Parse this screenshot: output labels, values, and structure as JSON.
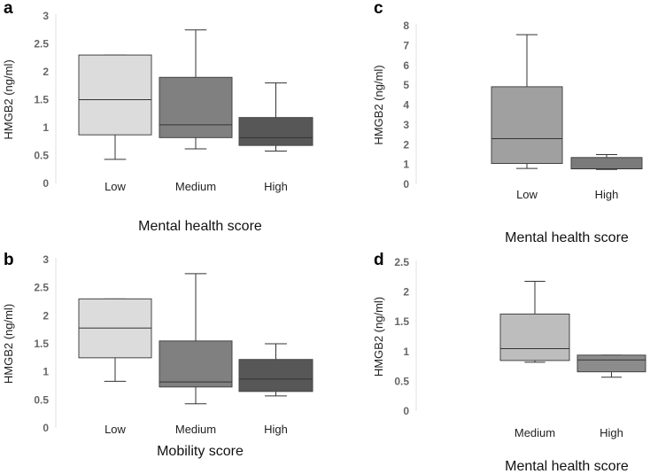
{
  "chart_data": [
    {
      "panel": "a",
      "type": "box",
      "ylabel": "HMGB2 (ng/ml)",
      "xlabel": "Mental health score",
      "ylim": [
        0,
        3
      ],
      "yticks": [
        "0",
        "0.5",
        "1",
        "1.5",
        "2",
        "2.5",
        "3"
      ],
      "categories": [
        "Low",
        "Medium",
        "High"
      ],
      "series": [
        {
          "name": "Low",
          "min": 0.43,
          "q1": 0.87,
          "median": 1.5,
          "q3": 2.3,
          "max": 2.3,
          "color": "#dcdcdc"
        },
        {
          "name": "Medium",
          "min": 0.62,
          "q1": 0.82,
          "median": 1.05,
          "q3": 1.9,
          "max": 2.75,
          "color": "#808080"
        },
        {
          "name": "High",
          "min": 0.58,
          "q1": 0.68,
          "median": 0.82,
          "q3": 1.18,
          "max": 1.8,
          "color": "#575757"
        }
      ]
    },
    {
      "panel": "b",
      "type": "box",
      "ylabel": "HMGB2 (ng/ml)",
      "xlabel": "Mobility score",
      "ylim": [
        0,
        3
      ],
      "yticks": [
        "0",
        "0.5",
        "1",
        "1.5",
        "2",
        "2.5",
        "3"
      ],
      "categories": [
        "Low",
        "Medium",
        "High"
      ],
      "series": [
        {
          "name": "Low",
          "min": 0.83,
          "q1": 1.25,
          "median": 1.78,
          "q3": 2.3,
          "max": 2.3,
          "color": "#dcdcdc"
        },
        {
          "name": "Medium",
          "min": 0.43,
          "q1": 0.73,
          "median": 0.82,
          "q3": 1.55,
          "max": 2.75,
          "color": "#808080"
        },
        {
          "name": "High",
          "min": 0.57,
          "q1": 0.65,
          "median": 0.87,
          "q3": 1.22,
          "max": 1.5,
          "color": "#575757"
        }
      ]
    },
    {
      "panel": "c",
      "type": "box",
      "ylabel": "HMGB2  (ng/ml)",
      "xlabel": "Mental health score",
      "ylim": [
        0,
        8
      ],
      "yticks": [
        "0",
        "1",
        "2",
        "3",
        "4",
        "5",
        "6",
        "7",
        "8"
      ],
      "categories": [
        "Low",
        "High"
      ],
      "series": [
        {
          "name": "Low",
          "min": 0.8,
          "q1": 1.05,
          "median": 2.3,
          "q3": 4.92,
          "max": 7.55,
          "color": "#a0a0a0"
        },
        {
          "name": "High",
          "min": 0.75,
          "q1": 0.78,
          "median": 0.78,
          "q3": 1.35,
          "max": 1.5,
          "color": "#7a7a7a"
        }
      ]
    },
    {
      "panel": "d",
      "type": "box",
      "ylabel": "HMGB2  (ng/ml)",
      "xlabel": "Mental health score",
      "ylim": [
        0,
        2.5
      ],
      "yticks": [
        "0",
        "0.5",
        "1",
        "1.5",
        "2",
        "2.5"
      ],
      "categories": [
        "Medium",
        "High"
      ],
      "series": [
        {
          "name": "Medium",
          "min": 0.82,
          "q1": 0.85,
          "median": 1.05,
          "q3": 1.63,
          "max": 2.18,
          "color": "#bdbdbd"
        },
        {
          "name": "High",
          "min": 0.57,
          "q1": 0.66,
          "median": 0.86,
          "q3": 0.94,
          "max": 0.94,
          "color": "#8c8c8c"
        }
      ]
    }
  ]
}
